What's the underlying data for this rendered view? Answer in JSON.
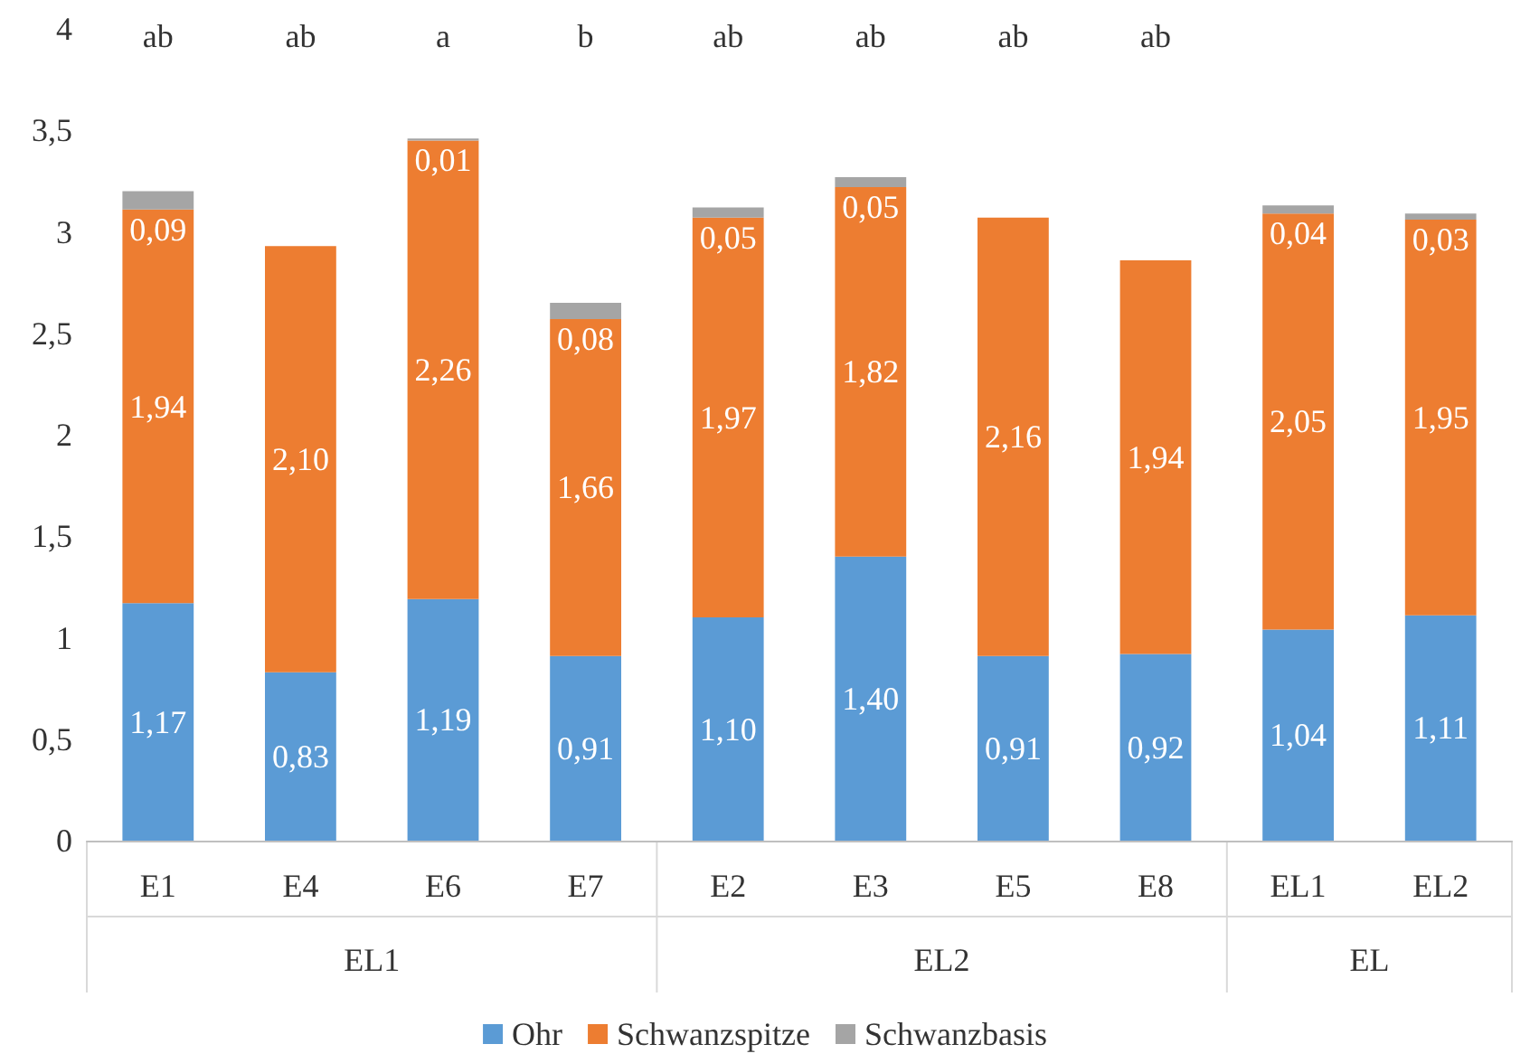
{
  "chart_data": {
    "type": "bar",
    "stacked": true,
    "categories": [
      "E1",
      "E4",
      "E6",
      "E7",
      "E2",
      "E3",
      "E5",
      "E8",
      "EL1",
      "EL2"
    ],
    "series": [
      {
        "name": "Ohr",
        "color": "#5b9bd5",
        "values": [
          1.17,
          0.83,
          1.19,
          0.91,
          1.1,
          1.4,
          0.91,
          0.92,
          1.04,
          1.11
        ],
        "value_labels": [
          "1,17",
          "0,83",
          "1,19",
          "0,91",
          "1,10",
          "1,40",
          "0,91",
          "0,92",
          "1,04",
          "1,11"
        ]
      },
      {
        "name": "Schwanzspitze",
        "color": "#ed7d31",
        "values": [
          1.94,
          2.1,
          2.26,
          1.66,
          1.97,
          1.82,
          2.16,
          1.94,
          2.05,
          1.95
        ],
        "value_labels": [
          "1,94",
          "2,10",
          "2,26",
          "1,66",
          "1,97",
          "1,82",
          "2,16",
          "1,94",
          "2,05",
          "1,95"
        ]
      },
      {
        "name": "Schwanzbasis",
        "color": "#a5a5a5",
        "values": [
          0.09,
          null,
          0.01,
          0.08,
          0.05,
          0.05,
          null,
          null,
          0.04,
          0.03
        ],
        "value_labels": [
          "0,09",
          null,
          "0,01",
          "0,08",
          "0,05",
          "0,05",
          null,
          null,
          "0,04",
          "0,03"
        ]
      }
    ],
    "ylim": [
      0,
      4
    ],
    "yticks": [
      0,
      {
        "value": 0.5,
        "label": "0,5"
      },
      1,
      {
        "value": 1.5,
        "label": "1,5"
      },
      2,
      {
        "value": 2.5,
        "label": "2,5"
      },
      3,
      {
        "value": 3.5,
        "label": "3,5"
      },
      4
    ],
    "legend": "bottom",
    "annotations": [
      "ab",
      "ab",
      "a",
      "b",
      "ab",
      "ab",
      "ab",
      "ab",
      "EL1",
      "EL2",
      "EL"
    ]
  }
}
